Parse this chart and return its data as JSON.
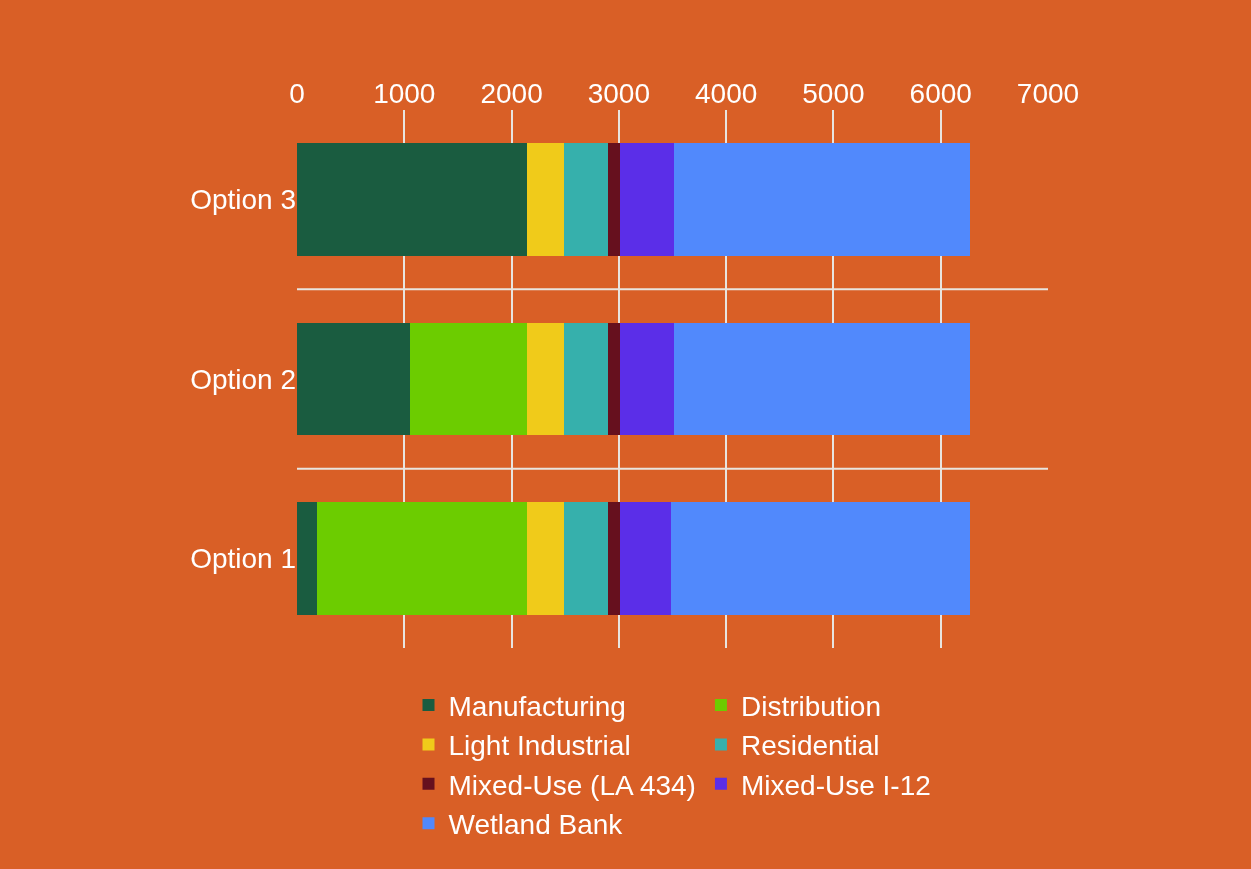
{
  "chart_data": {
    "type": "bar",
    "orientation": "horizontal",
    "stacked": true,
    "categories": [
      "Option 3",
      "Option 2",
      "Option 1"
    ],
    "series": [
      {
        "name": "Manufacturing",
        "color": "#1a5c40",
        "values": [
          2140,
          1050,
          190
        ]
      },
      {
        "name": "Distribution",
        "color": "#6ccc00",
        "values": [
          0,
          1090,
          1950
        ]
      },
      {
        "name": "Light Industrial",
        "color": "#f0cb1a",
        "values": [
          350,
          350,
          350
        ]
      },
      {
        "name": "Residential",
        "color": "#36b0ac",
        "values": [
          410,
          410,
          410
        ]
      },
      {
        "name": "Mixed-Use (LA 434)",
        "color": "#66101e",
        "values": [
          110,
          110,
          110
        ]
      },
      {
        "name": "Mixed-Use I-12",
        "color": "#5b2ee8",
        "values": [
          500,
          500,
          480
        ]
      },
      {
        "name": "Wetland Bank",
        "color": "#5189fc",
        "values": [
          2760,
          2760,
          2780
        ]
      }
    ],
    "xlim": [
      0,
      7000
    ],
    "xticks": [
      0,
      1000,
      2000,
      3000,
      4000,
      5000,
      6000,
      7000
    ],
    "grid": true,
    "legend": "bottom"
  }
}
